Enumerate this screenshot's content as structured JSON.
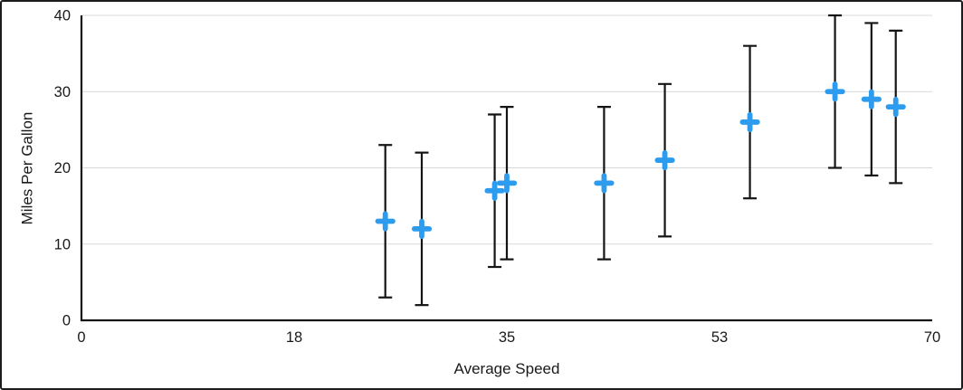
{
  "chart_data": {
    "type": "scatter",
    "title": "",
    "xlabel": "Average Speed",
    "ylabel": "Miles Per Gallon",
    "xlim": [
      0,
      70
    ],
    "ylim": [
      0,
      40
    ],
    "grid": "horizontal",
    "legend": "none",
    "x_ticks": [
      {
        "value": 0,
        "label": "0"
      },
      {
        "value": 17.5,
        "label": "18"
      },
      {
        "value": 35,
        "label": "35"
      },
      {
        "value": 52.5,
        "label": "53"
      },
      {
        "value": 70,
        "label": "70"
      }
    ],
    "y_ticks": [
      {
        "value": 0,
        "label": "0"
      },
      {
        "value": 10,
        "label": "10"
      },
      {
        "value": 20,
        "label": "20"
      },
      {
        "value": 30,
        "label": "30"
      },
      {
        "value": 40,
        "label": "40"
      }
    ],
    "colors": {
      "background": "#FFFFFF",
      "gridline": "#D9D9D9",
      "axis": "#141414",
      "text": "#1A1A1A",
      "frame_border": "#1C1C1E"
    },
    "series": [
      {
        "name": "Miles Per Gallon",
        "marker": "plus",
        "marker_color": "#2D9CEE",
        "error_bar_color": "#141414",
        "y_error": 10,
        "points": [
          {
            "x": 25,
            "y": 13
          },
          {
            "x": 28,
            "y": 12
          },
          {
            "x": 34,
            "y": 17
          },
          {
            "x": 35,
            "y": 18
          },
          {
            "x": 43,
            "y": 18
          },
          {
            "x": 48,
            "y": 21
          },
          {
            "x": 55,
            "y": 26
          },
          {
            "x": 62,
            "y": 30
          },
          {
            "x": 65,
            "y": 29
          },
          {
            "x": 67,
            "y": 28
          }
        ]
      }
    ]
  }
}
